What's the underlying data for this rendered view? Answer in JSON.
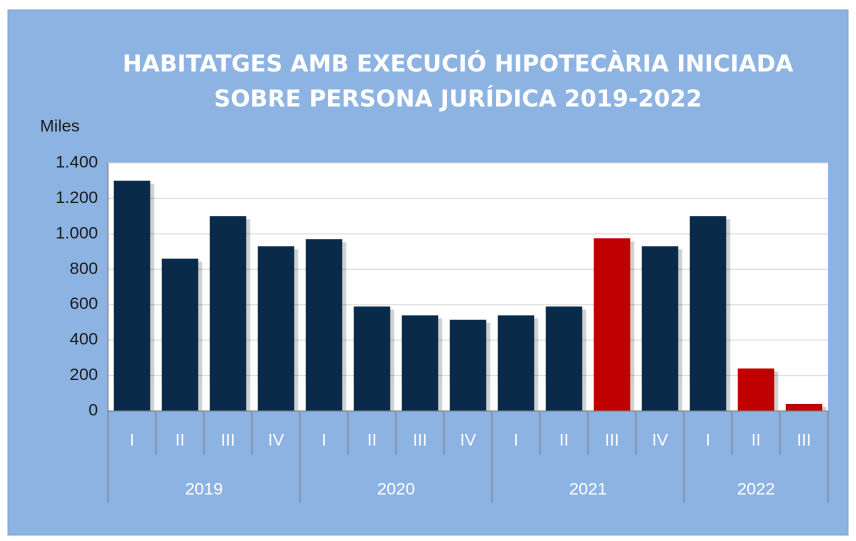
{
  "chart_data": {
    "type": "bar",
    "title": [
      "HABITATGES AMB EXECUCIÓ HIPOTECÀRIA INICIADA",
      "SOBRE PERSONA JURÍDICA 2019-2022"
    ],
    "y_label": "Miles",
    "groups": [
      {
        "name": "2019",
        "categories": [
          "I",
          "II",
          "III",
          "IV"
        ],
        "values": [
          1300,
          860,
          1100,
          930
        ],
        "colors": [
          "#0a2a4a",
          "#0a2a4a",
          "#0a2a4a",
          "#0a2a4a"
        ]
      },
      {
        "name": "2020",
        "categories": [
          "I",
          "II",
          "III",
          "IV"
        ],
        "values": [
          970,
          590,
          540,
          515
        ],
        "colors": [
          "#0a2a4a",
          "#0a2a4a",
          "#0a2a4a",
          "#0a2a4a"
        ]
      },
      {
        "name": "2021",
        "categories": [
          "I",
          "II",
          "III",
          "IV"
        ],
        "values": [
          540,
          590,
          975,
          930
        ],
        "colors": [
          "#0a2a4a",
          "#0a2a4a",
          "#c00000",
          "#0a2a4a"
        ]
      },
      {
        "name": "2022",
        "categories": [
          "I",
          "II",
          "III"
        ],
        "values": [
          1100,
          240,
          40
        ],
        "colors": [
          "#0a2a4a",
          "#c00000",
          "#c00000"
        ]
      }
    ],
    "ylim": [
      0,
      1400
    ],
    "yticks": [
      0,
      200,
      400,
      600,
      800,
      {
        "value": 1000,
        "label": "1.000"
      },
      {
        "value": 1200,
        "label": "1.200"
      },
      {
        "value": 1400,
        "label": "1.400"
      }
    ],
    "grid": true
  }
}
